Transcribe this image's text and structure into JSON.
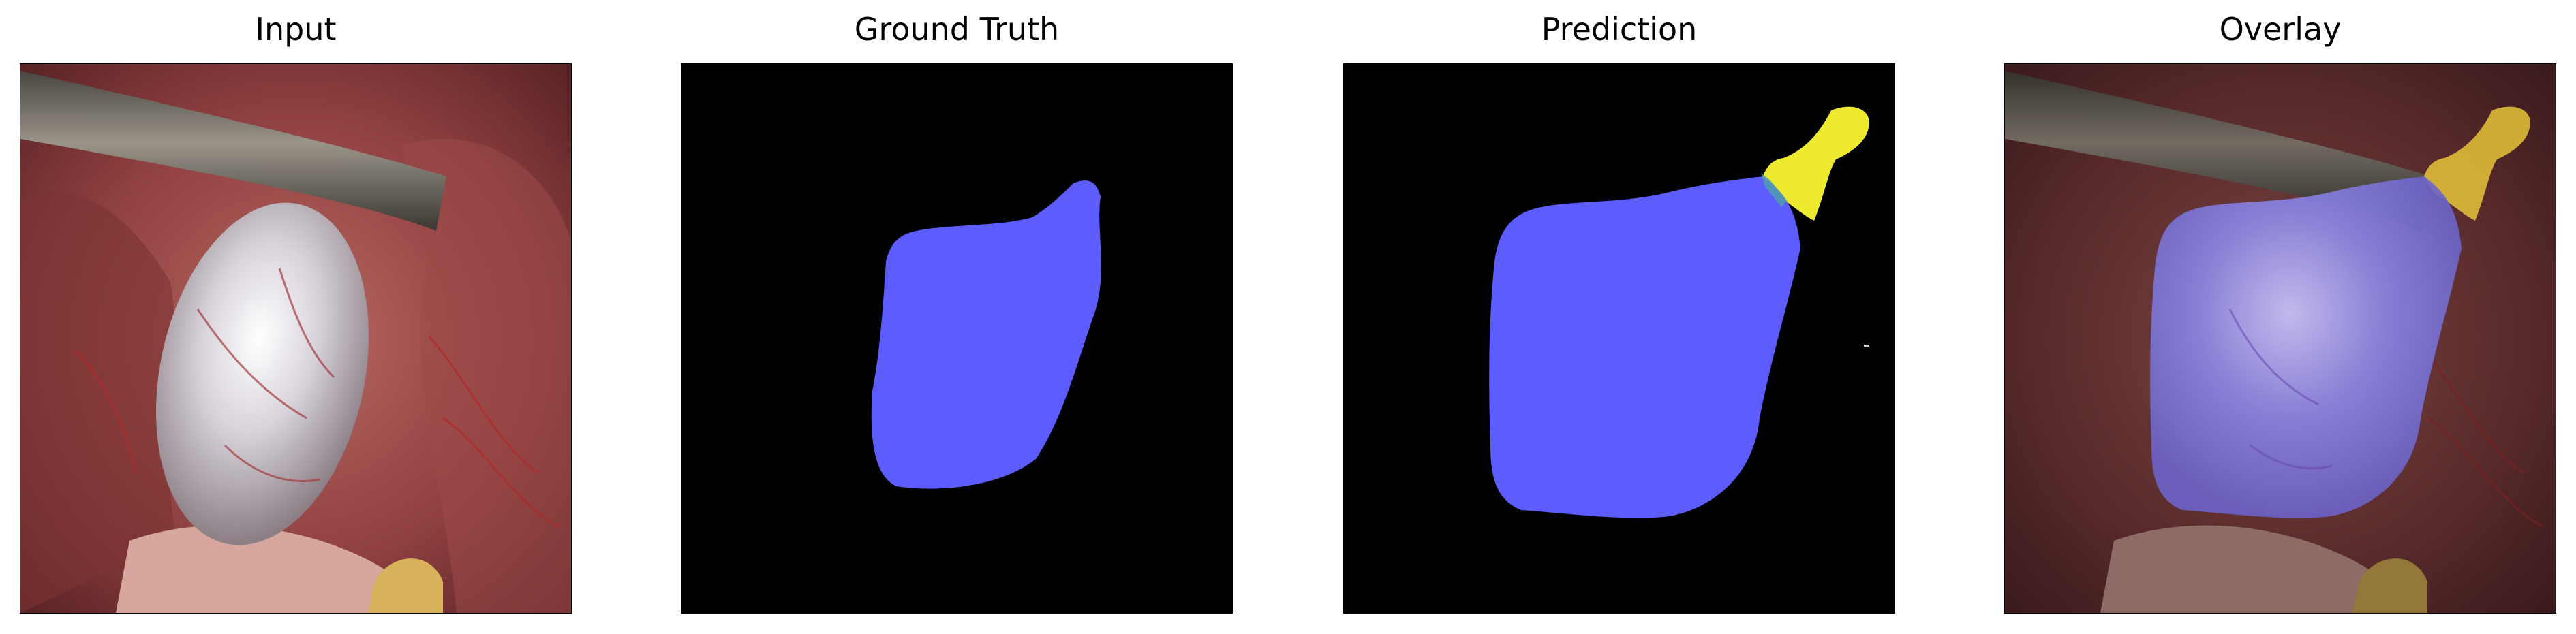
{
  "figure": {
    "panels": [
      {
        "title": "Input"
      },
      {
        "title": "Ground Truth"
      },
      {
        "title": "Prediction"
      },
      {
        "title": "Overlay"
      }
    ]
  },
  "colors": {
    "background_mask": "#000000",
    "class_blue": "#5c5cff",
    "class_yellow": "#eeea30",
    "tissue_dark": "#6b2a2c",
    "tissue_mid": "#a5504f",
    "tissue_light": "#d09a92",
    "organ_white": "#e6e3ea",
    "instrument": "#7a746a"
  }
}
